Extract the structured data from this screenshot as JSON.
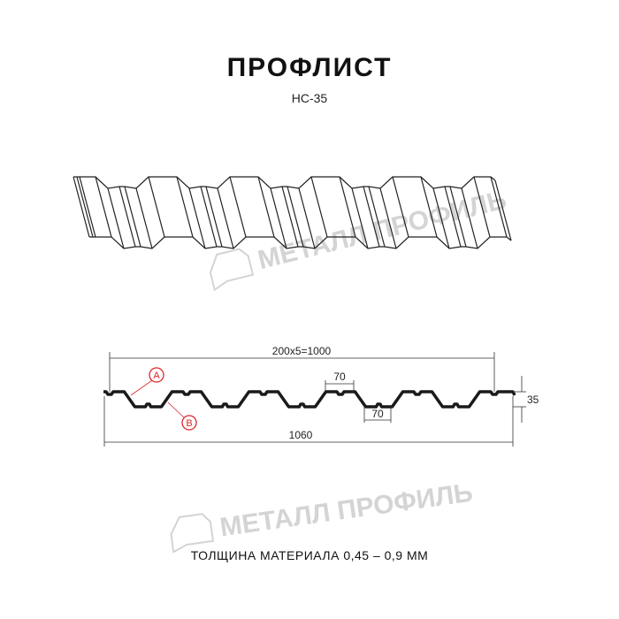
{
  "title": "ПРОФЛИСТ",
  "subtitle": "НС-35",
  "footer": "ТОЛЩИНА МАТЕРИАЛА 0,45 – 0,9 ММ",
  "watermark": "МЕТАЛЛ ПРОФИЛЬ",
  "dimensions": {
    "pitch_total": "200x5=1000",
    "top_width": "70",
    "bottom_width": "70",
    "height": "35",
    "total_width": "1060"
  },
  "labels": {
    "a": "A",
    "b": "B"
  },
  "colors": {
    "profile": "#1a1a1a",
    "marker": "#d9262b",
    "watermark": "#d4d4d4"
  }
}
